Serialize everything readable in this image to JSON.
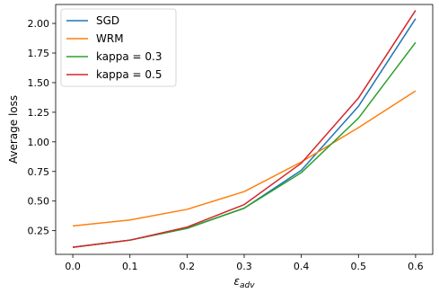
{
  "chart_data": {
    "type": "line",
    "title": "",
    "xlabel": "ε",
    "xlabel_sub": "adv",
    "ylabel": "Average loss",
    "x": [
      0.0,
      0.1,
      0.2,
      0.3,
      0.4,
      0.5,
      0.6
    ],
    "xlim": [
      -0.03,
      0.63
    ],
    "ylim": [
      0.05,
      2.16
    ],
    "xticks": [
      0.0,
      0.1,
      0.2,
      0.3,
      0.4,
      0.5,
      0.6
    ],
    "xtick_labels": [
      "0.0",
      "0.1",
      "0.2",
      "0.3",
      "0.4",
      "0.5",
      "0.6"
    ],
    "yticks": [
      0.25,
      0.5,
      0.75,
      1.0,
      1.25,
      1.5,
      1.75,
      2.0
    ],
    "ytick_labels": [
      "0.25",
      "0.50",
      "0.75",
      "1.00",
      "1.25",
      "1.50",
      "1.75",
      "2.00"
    ],
    "grid": false,
    "legend_position": "top-left",
    "series": [
      {
        "name": "SGD",
        "color": "#1f77b4",
        "values": [
          0.11,
          0.17,
          0.27,
          0.44,
          0.76,
          1.3,
          2.04
        ]
      },
      {
        "name": "WRM",
        "color": "#ff7f0e",
        "values": [
          0.29,
          0.34,
          0.43,
          0.58,
          0.83,
          1.12,
          1.43
        ]
      },
      {
        "name": "kappa = 0.3",
        "color": "#2ca02c",
        "values": [
          0.11,
          0.17,
          0.27,
          0.44,
          0.74,
          1.2,
          1.84
        ]
      },
      {
        "name": "kappa = 0.5",
        "color": "#d62728",
        "values": [
          0.11,
          0.17,
          0.28,
          0.47,
          0.82,
          1.37,
          2.11
        ]
      }
    ]
  }
}
